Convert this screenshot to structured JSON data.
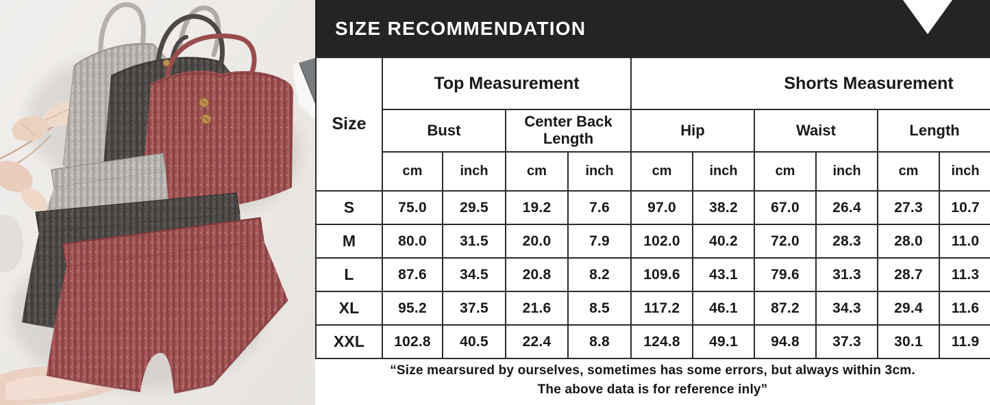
{
  "header": {
    "title": "SIZE RECOMMENDATION"
  },
  "table": {
    "size_header": "Size",
    "groups": [
      {
        "label": "Top Measurement",
        "columns": [
          "Bust",
          "Center Back Length"
        ]
      },
      {
        "label": "Shorts Measurement",
        "columns": [
          "Hip",
          "Waist",
          "Length"
        ]
      }
    ],
    "unit_row": [
      "cm",
      "inch",
      "cm",
      "inch",
      "cm",
      "inch",
      "cm",
      "inch",
      "cm",
      "inch"
    ],
    "rows": [
      {
        "size": "S",
        "values": [
          "75.0",
          "29.5",
          "19.2",
          "7.6",
          "97.0",
          "38.2",
          "67.0",
          "26.4",
          "27.3",
          "10.7"
        ]
      },
      {
        "size": "M",
        "values": [
          "80.0",
          "31.5",
          "20.0",
          "7.9",
          "102.0",
          "40.2",
          "72.0",
          "28.3",
          "28.0",
          "11.0"
        ]
      },
      {
        "size": "L",
        "values": [
          "87.6",
          "34.5",
          "20.8",
          "8.2",
          "109.6",
          "43.1",
          "79.6",
          "31.3",
          "28.7",
          "11.3"
        ]
      },
      {
        "size": "XL",
        "values": [
          "95.2",
          "37.5",
          "21.6",
          "8.5",
          "117.2",
          "46.1",
          "87.2",
          "34.3",
          "29.4",
          "11.6"
        ]
      },
      {
        "size": "XXL",
        "values": [
          "102.8",
          "40.5",
          "22.4",
          "8.8",
          "124.8",
          "49.1",
          "94.8",
          "37.3",
          "30.1",
          "11.9"
        ]
      }
    ]
  },
  "footnote": {
    "line1": "“Size mearsured by ourselves, sometimes has some errors, but always within 3cm.",
    "line2": "The above data is for reference inly”"
  },
  "photo": {
    "alt": "Flat lay of three ribbed-knit cami top and shorts lounge sets in light gray, charcoal gray and brick red with dried leaves and a notebook",
    "colors": {
      "header_bar": "#242424",
      "light_gray_knit": "#b7b4b1",
      "charcoal_knit": "#4d4a48",
      "brick_red_knit": "#a05152",
      "photo_background": "#edeae7"
    }
  }
}
